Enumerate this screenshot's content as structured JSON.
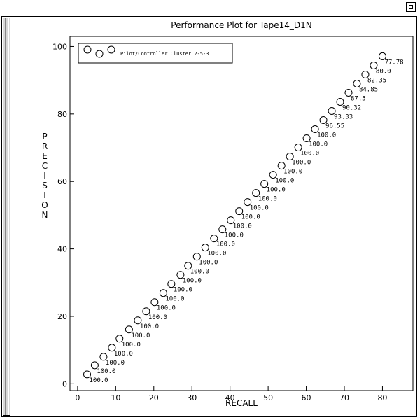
{
  "window": {
    "control_icon": "window-restore-icon"
  },
  "chart_data": {
    "type": "scatter",
    "title": "Performance Plot for Tape14_D1N",
    "xlabel": "RECALL",
    "ylabel": "PRECISION",
    "xlim": [
      -2,
      88
    ],
    "ylim": [
      -2,
      103
    ],
    "x_ticks": [
      0,
      10,
      20,
      30,
      40,
      50,
      60,
      70,
      80
    ],
    "y_ticks": [
      0,
      20,
      40,
      60,
      80,
      100
    ],
    "grid": false,
    "legend": {
      "position": "top-left",
      "entries": [
        "Pilot/Controller Cluster 2-5-3"
      ]
    },
    "series": [
      {
        "name": "Pilot/Controller Cluster 2-5-3",
        "marker": "open-circle",
        "points": [
          {
            "x": 2.5,
            "y": 2.8,
            "label": "100.0"
          },
          {
            "x": 4.5,
            "y": 5.5,
            "label": "100.0"
          },
          {
            "x": 6.8,
            "y": 8.0,
            "label": "100.0"
          },
          {
            "x": 9.0,
            "y": 10.7,
            "label": "100.0"
          },
          {
            "x": 11.0,
            "y": 13.4,
            "label": "100.0"
          },
          {
            "x": 13.5,
            "y": 16.1,
            "label": "100.0"
          },
          {
            "x": 15.8,
            "y": 18.8,
            "label": "100.0"
          },
          {
            "x": 18.0,
            "y": 21.5,
            "label": "100.0"
          },
          {
            "x": 20.2,
            "y": 24.2,
            "label": "100.0"
          },
          {
            "x": 22.5,
            "y": 26.9,
            "label": "100.0"
          },
          {
            "x": 24.6,
            "y": 29.6,
            "label": "100.0"
          },
          {
            "x": 27.0,
            "y": 32.3,
            "label": "100.0"
          },
          {
            "x": 29.0,
            "y": 35.0,
            "label": "100.0"
          },
          {
            "x": 31.3,
            "y": 37.7,
            "label": "100.0"
          },
          {
            "x": 33.5,
            "y": 40.4,
            "label": "100.0"
          },
          {
            "x": 35.8,
            "y": 43.1,
            "label": "100.0"
          },
          {
            "x": 38.0,
            "y": 45.8,
            "label": "100.0"
          },
          {
            "x": 40.2,
            "y": 48.5,
            "label": "100.0"
          },
          {
            "x": 42.4,
            "y": 51.2,
            "label": "100.0"
          },
          {
            "x": 44.6,
            "y": 53.9,
            "label": "100.0"
          },
          {
            "x": 46.8,
            "y": 56.6,
            "label": "100.0"
          },
          {
            "x": 49.0,
            "y": 59.3,
            "label": "100.0"
          },
          {
            "x": 51.3,
            "y": 62.0,
            "label": "100.0"
          },
          {
            "x": 53.5,
            "y": 64.7,
            "label": "100.0"
          },
          {
            "x": 55.7,
            "y": 67.4,
            "label": "100.0"
          },
          {
            "x": 57.9,
            "y": 70.1,
            "label": "100.0"
          },
          {
            "x": 60.1,
            "y": 72.8,
            "label": "100.0"
          },
          {
            "x": 62.3,
            "y": 75.5,
            "label": "100.0"
          },
          {
            "x": 64.5,
            "y": 78.2,
            "label": "96.55"
          },
          {
            "x": 66.7,
            "y": 80.9,
            "label": "93.33"
          },
          {
            "x": 68.9,
            "y": 83.6,
            "label": "90.32"
          },
          {
            "x": 71.1,
            "y": 86.3,
            "label": "87.5"
          },
          {
            "x": 73.3,
            "y": 89.0,
            "label": "84.85"
          },
          {
            "x": 75.5,
            "y": 91.7,
            "label": "82.35"
          },
          {
            "x": 77.7,
            "y": 94.4,
            "label": "80.0"
          },
          {
            "x": 80.0,
            "y": 97.1,
            "label": "77.78"
          }
        ]
      }
    ]
  }
}
